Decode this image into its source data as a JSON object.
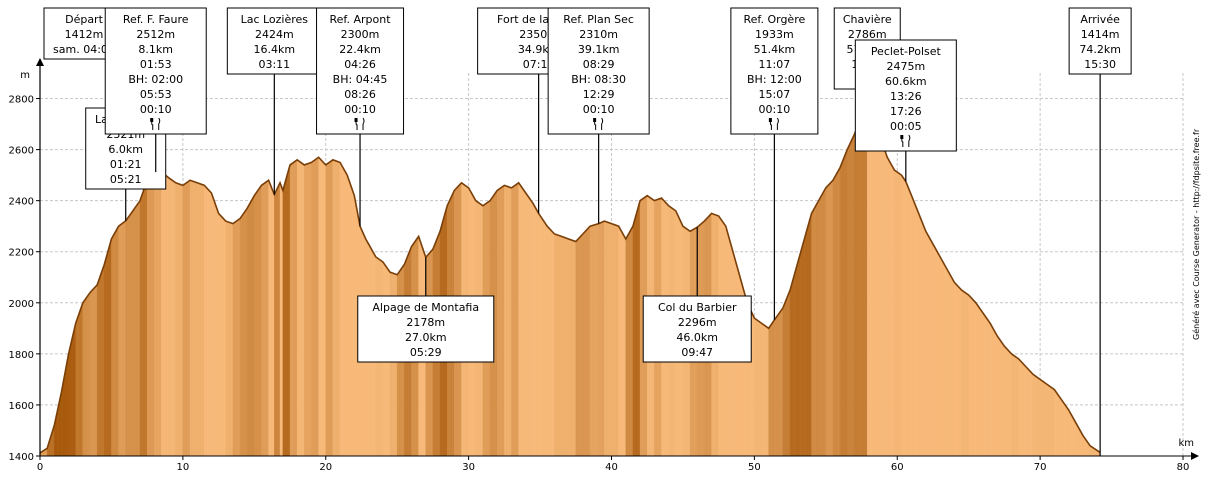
{
  "chart_data": {
    "type": "area",
    "xlabel": "km",
    "ylabel": "m",
    "xlim": [
      0,
      80
    ],
    "ylim": [
      1400,
      2900
    ],
    "x_ticks": [
      0,
      10,
      20,
      30,
      40,
      50,
      60,
      70,
      80
    ],
    "y_ticks": [
      1400,
      1600,
      1800,
      2000,
      2200,
      2400,
      2600,
      2800
    ],
    "grid": true,
    "colors": {
      "fill_dark": "#a85a0c",
      "fill_light": "#f7b978",
      "outline": "#7a3f08",
      "summit": "#22aa22"
    },
    "profile": [
      [
        0,
        1412
      ],
      [
        0.5,
        1430
      ],
      [
        1,
        1520
      ],
      [
        1.5,
        1650
      ],
      [
        2,
        1800
      ],
      [
        2.5,
        1920
      ],
      [
        3,
        2000
      ],
      [
        3.5,
        2040
      ],
      [
        4,
        2070
      ],
      [
        4.5,
        2150
      ],
      [
        5,
        2250
      ],
      [
        5.5,
        2300
      ],
      [
        6,
        2321
      ],
      [
        6.5,
        2360
      ],
      [
        7,
        2400
      ],
      [
        7.5,
        2480
      ],
      [
        8,
        2505
      ],
      [
        8.5,
        2512
      ],
      [
        9,
        2490
      ],
      [
        9.5,
        2470
      ],
      [
        10,
        2460
      ],
      [
        10.5,
        2480
      ],
      [
        11,
        2470
      ],
      [
        11.5,
        2460
      ],
      [
        12,
        2430
      ],
      [
        12.5,
        2350
      ],
      [
        13,
        2320
      ],
      [
        13.5,
        2310
      ],
      [
        14,
        2330
      ],
      [
        14.5,
        2370
      ],
      [
        15,
        2420
      ],
      [
        15.5,
        2460
      ],
      [
        16,
        2480
      ],
      [
        16.4,
        2424
      ],
      [
        16.8,
        2470
      ],
      [
        17,
        2440
      ],
      [
        17.5,
        2540
      ],
      [
        18,
        2560
      ],
      [
        18.5,
        2540
      ],
      [
        19,
        2550
      ],
      [
        19.5,
        2570
      ],
      [
        20,
        2540
      ],
      [
        20.5,
        2560
      ],
      [
        21,
        2550
      ],
      [
        21.5,
        2500
      ],
      [
        22,
        2420
      ],
      [
        22.4,
        2300
      ],
      [
        22.8,
        2250
      ],
      [
        23,
        2230
      ],
      [
        23.5,
        2180
      ],
      [
        24,
        2160
      ],
      [
        24.5,
        2120
      ],
      [
        25,
        2110
      ],
      [
        25.5,
        2150
      ],
      [
        26,
        2220
      ],
      [
        26.5,
        2260
      ],
      [
        27,
        2178
      ],
      [
        27.5,
        2210
      ],
      [
        28,
        2280
      ],
      [
        28.5,
        2380
      ],
      [
        29,
        2440
      ],
      [
        29.5,
        2470
      ],
      [
        30,
        2450
      ],
      [
        30.5,
        2400
      ],
      [
        31,
        2380
      ],
      [
        31.5,
        2400
      ],
      [
        32,
        2440
      ],
      [
        32.5,
        2460
      ],
      [
        33,
        2450
      ],
      [
        33.5,
        2470
      ],
      [
        34,
        2430
      ],
      [
        34.5,
        2390
      ],
      [
        34.9,
        2350
      ],
      [
        35.5,
        2300
      ],
      [
        36,
        2270
      ],
      [
        36.5,
        2260
      ],
      [
        37,
        2250
      ],
      [
        37.5,
        2240
      ],
      [
        38,
        2270
      ],
      [
        38.5,
        2300
      ],
      [
        39.1,
        2310
      ],
      [
        39.5,
        2320
      ],
      [
        40,
        2310
      ],
      [
        40.5,
        2300
      ],
      [
        41,
        2250
      ],
      [
        41.5,
        2300
      ],
      [
        42,
        2400
      ],
      [
        42.5,
        2420
      ],
      [
        43,
        2400
      ],
      [
        43.5,
        2410
      ],
      [
        44,
        2380
      ],
      [
        44.5,
        2360
      ],
      [
        45,
        2300
      ],
      [
        45.5,
        2280
      ],
      [
        46,
        2296
      ],
      [
        46.5,
        2320
      ],
      [
        47,
        2350
      ],
      [
        47.5,
        2340
      ],
      [
        48,
        2300
      ],
      [
        48.5,
        2200
      ],
      [
        49,
        2100
      ],
      [
        49.5,
        2000
      ],
      [
        50,
        1940
      ],
      [
        50.5,
        1920
      ],
      [
        51,
        1900
      ],
      [
        51.4,
        1933
      ],
      [
        52,
        1980
      ],
      [
        52.5,
        2050
      ],
      [
        53,
        2150
      ],
      [
        53.5,
        2250
      ],
      [
        54,
        2350
      ],
      [
        54.5,
        2400
      ],
      [
        55,
        2450
      ],
      [
        55.5,
        2480
      ],
      [
        56,
        2530
      ],
      [
        56.5,
        2600
      ],
      [
        57,
        2660
      ],
      [
        57.5,
        2730
      ],
      [
        57.9,
        2786
      ],
      [
        58.3,
        2720
      ],
      [
        58.8,
        2650
      ],
      [
        59.3,
        2570
      ],
      [
        59.8,
        2520
      ],
      [
        60.3,
        2500
      ],
      [
        60.6,
        2475
      ],
      [
        61,
        2420
      ],
      [
        61.5,
        2350
      ],
      [
        62,
        2280
      ],
      [
        62.5,
        2230
      ],
      [
        63,
        2180
      ],
      [
        63.5,
        2130
      ],
      [
        64,
        2080
      ],
      [
        64.5,
        2050
      ],
      [
        65,
        2030
      ],
      [
        65.5,
        2000
      ],
      [
        66,
        1960
      ],
      [
        66.5,
        1920
      ],
      [
        67,
        1870
      ],
      [
        67.5,
        1830
      ],
      [
        68,
        1800
      ],
      [
        68.5,
        1780
      ],
      [
        69,
        1750
      ],
      [
        69.5,
        1720
      ],
      [
        70,
        1700
      ],
      [
        70.5,
        1680
      ],
      [
        71,
        1660
      ],
      [
        71.5,
        1620
      ],
      [
        72,
        1580
      ],
      [
        72.5,
        1530
      ],
      [
        73,
        1480
      ],
      [
        73.5,
        1440
      ],
      [
        74.2,
        1414
      ]
    ],
    "waypoints": [
      {
        "name": "Départ",
        "lines": [
          "Départ",
          "1412m",
          "sam. 04:00"
        ],
        "km": 0,
        "alt": 1412,
        "pos": "top",
        "meal": false
      },
      {
        "name": "Lac Vaches",
        "lines": [
          "Lac Vaches",
          "2321m",
          "6.0km",
          "01:21",
          "05:21"
        ],
        "km": 6.0,
        "alt": 2321,
        "pos": "top",
        "meal": false
      },
      {
        "name": "Ref. F. Faure",
        "lines": [
          "Ref. F. Faure",
          "2512m",
          "8.1km",
          "01:53",
          "BH: 02:00",
          "05:53",
          "00:10"
        ],
        "km": 8.1,
        "alt": 2512,
        "pos": "top",
        "meal": true
      },
      {
        "name": "Lac Lozières",
        "lines": [
          "Lac Lozières",
          "2424m",
          "16.4km",
          "03:11"
        ],
        "km": 16.4,
        "alt": 2424,
        "pos": "top",
        "meal": false
      },
      {
        "name": "Ref. Arpont",
        "lines": [
          "Ref. Arpont",
          "2300m",
          "22.4km",
          "04:26",
          "BH: 04:45",
          "08:26",
          "00:10"
        ],
        "km": 22.4,
        "alt": 2300,
        "pos": "top",
        "meal": true
      },
      {
        "name": "Alpage de Montafia",
        "lines": [
          "Alpage de Montafia",
          "2178m",
          "27.0km",
          "05:29"
        ],
        "km": 27.0,
        "alt": 2178,
        "pos": "bottom",
        "meal": false
      },
      {
        "name": "Fort de la Turra",
        "lines": [
          "Fort de la Turra",
          "2350m",
          "34.9km",
          "07:17"
        ],
        "km": 34.9,
        "alt": 2350,
        "pos": "top",
        "meal": false
      },
      {
        "name": "Ref. Plan Sec",
        "lines": [
          "Ref. Plan Sec",
          "2310m",
          "39.1km",
          "08:29",
          "BH: 08:30",
          "12:29",
          "00:10"
        ],
        "km": 39.1,
        "alt": 2310,
        "pos": "top",
        "meal": true
      },
      {
        "name": "Col du Barbier",
        "lines": [
          "Col du Barbier",
          "2296m",
          "46.0km",
          "09:47"
        ],
        "km": 46.0,
        "alt": 2296,
        "pos": "bottom",
        "meal": false
      },
      {
        "name": "Ref. Orgère",
        "lines": [
          "Ref. Orgère",
          "1933m",
          "51.4km",
          "11:07",
          "BH: 12:00",
          "15:07",
          "00:10"
        ],
        "km": 51.4,
        "alt": 1933,
        "pos": "top",
        "meal": true
      },
      {
        "name": "Chavière",
        "lines": [
          "Chavière",
          "2786m",
          "57.9km",
          "12:52"
        ],
        "km": 57.9,
        "alt": 2786,
        "pos": "top",
        "meal": false,
        "summit": true
      },
      {
        "name": "Peclet-Polset",
        "lines": [
          "Peclet-Polset",
          "2475m",
          "60.6km",
          "13:26",
          "17:26",
          "00:05"
        ],
        "km": 60.6,
        "alt": 2475,
        "pos": "top",
        "meal": true
      },
      {
        "name": "Arrivée",
        "lines": [
          "Arrivée",
          "1414m",
          "74.2km",
          "15:30"
        ],
        "km": 74.2,
        "alt": 1414,
        "pos": "top",
        "meal": false
      }
    ]
  },
  "side_text": "Généré avec Course Generator - http://fdpsite.free.fr"
}
